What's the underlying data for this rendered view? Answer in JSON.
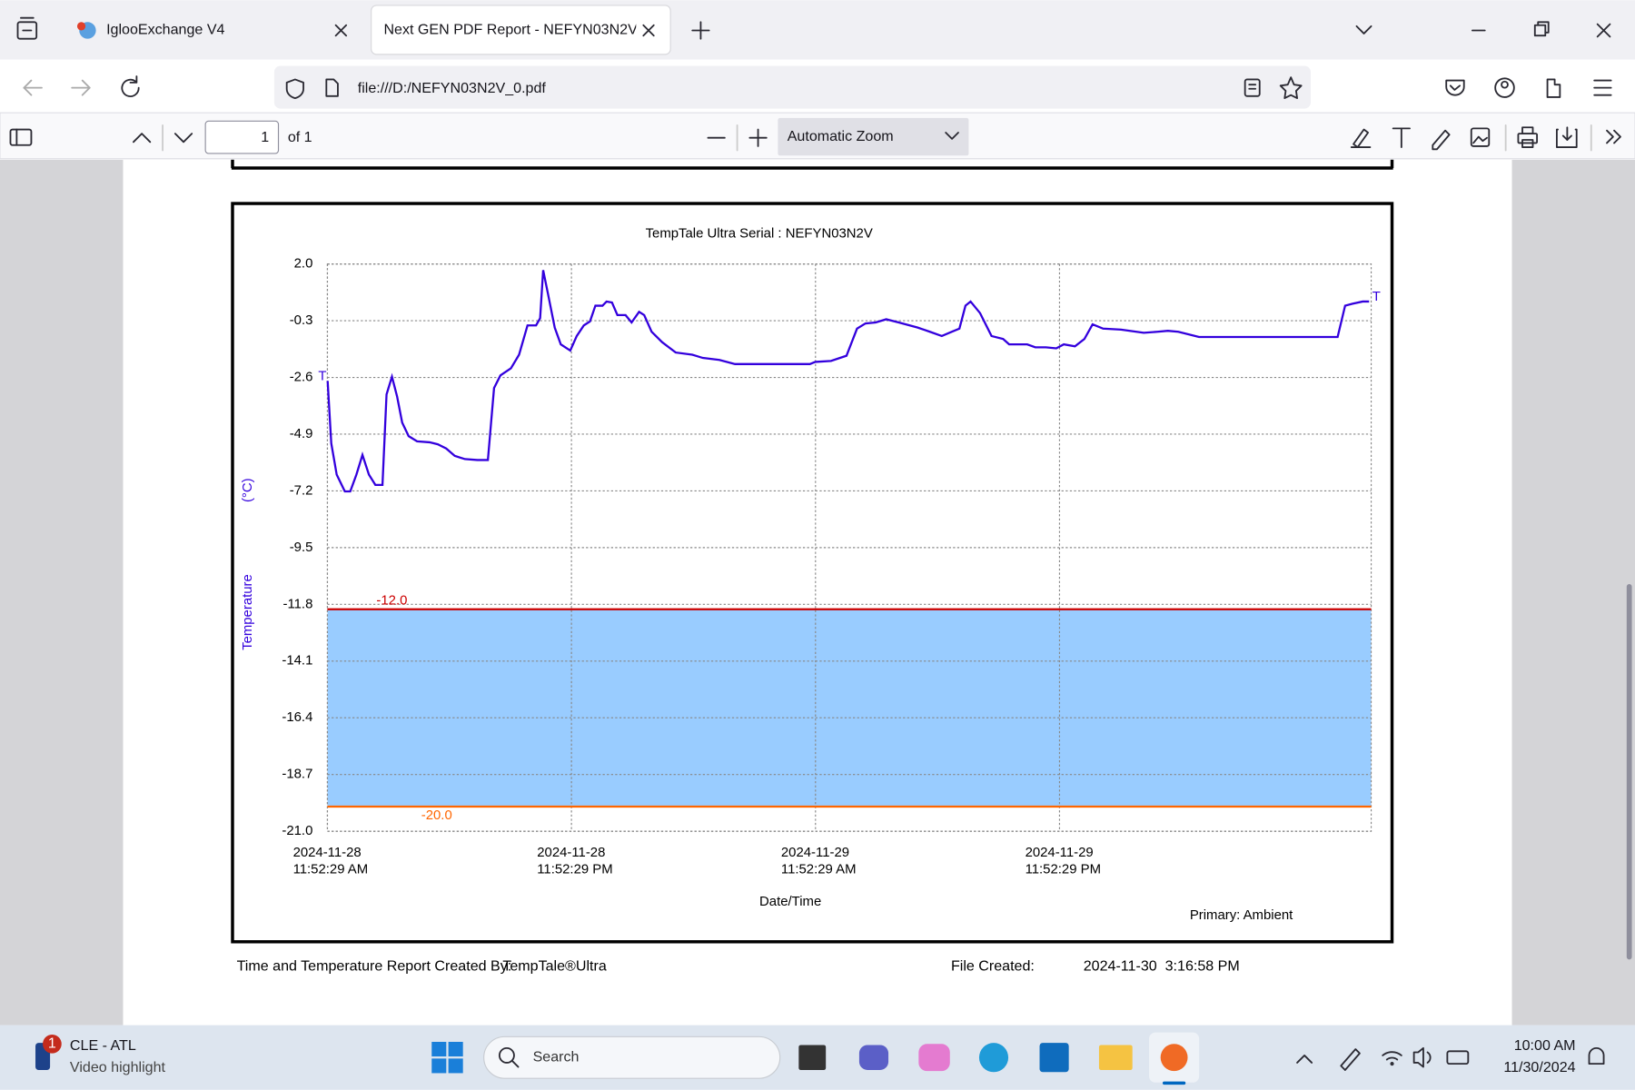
{
  "browser": {
    "tabs": [
      "IglooExchange V4",
      "Next GEN PDF Report - NEFYN03N2V_0.pdf"
    ],
    "address": "file:///D:/NEFYN03N2V_0.pdf",
    "pdf_toolbar": {
      "page": "1",
      "of": "of 1",
      "zoom": "Automatic Zoom"
    }
  },
  "chart_data": {
    "type": "line",
    "title": "TempTale Ultra  Serial : NEFYN03N2V",
    "ylabel": "Temperature",
    "yunit": "(°C)",
    "xlabel": "Date/Time",
    "x": [
      "2024-11-28T11:53",
      "2024-11-28T12:04",
      "2024-11-28T12:20",
      "2024-11-28T12:44",
      "2024-11-28T13:00",
      "2024-11-28T13:18",
      "2024-11-28T13:36",
      "2024-11-28T13:55",
      "2024-11-28T14:14",
      "2024-11-28T14:35",
      "2024-11-28T14:47",
      "2024-11-28T15:03",
      "2024-11-28T15:18",
      "2024-11-28T15:33",
      "2024-11-28T15:52",
      "2024-11-28T16:17",
      "2024-11-28T16:54",
      "2024-11-28T17:18",
      "2024-11-28T17:43",
      "2024-11-28T18:08",
      "2024-11-28T18:38",
      "2024-11-28T19:15",
      "2024-11-28T19:46",
      "2024-11-28T20:04",
      "2024-11-28T20:23",
      "2024-11-28T20:54",
      "2024-11-28T21:18",
      "2024-11-28T21:43",
      "2024-11-28T22:08",
      "2024-11-28T22:20",
      "2024-11-28T22:29",
      "2024-11-28T22:44",
      "2024-11-28T23:03",
      "2024-11-28T23:21",
      "2024-11-28T23:49",
      "2024-11-29T00:08",
      "2024-11-29T00:29",
      "2024-11-29T00:47",
      "2024-11-29T01:03",
      "2024-11-29T01:24",
      "2024-11-29T01:36",
      "2024-11-29T01:52",
      "2024-11-29T02:08",
      "2024-11-29T02:32",
      "2024-11-29T02:50",
      "2024-11-29T03:12",
      "2024-11-29T03:27",
      "2024-11-29T03:49",
      "2024-11-29T04:20",
      "2024-11-29T05:00",
      "2024-11-29T05:49",
      "2024-11-29T06:20",
      "2024-11-29T07:09",
      "2024-11-29T07:55",
      "2024-11-29T09:43",
      "2024-11-29T11:36",
      "2024-11-29T11:52",
      "2024-11-29T12:38",
      "2024-11-29T13:24",
      "2024-11-29T13:55",
      "2024-11-29T14:20",
      "2024-11-29T14:50",
      "2024-11-29T15:21",
      "2024-11-29T15:58",
      "2024-11-29T16:54",
      "2024-11-29T17:30",
      "2024-11-29T18:05",
      "2024-11-29T18:35",
      "2024-11-29T18:57",
      "2024-11-29T19:15",
      "2024-11-29T19:30",
      "2024-11-29T19:58",
      "2024-11-29T20:32",
      "2024-11-29T21:06",
      "2024-11-29T21:24",
      "2024-11-29T22:17",
      "2024-11-29T22:41",
      "2024-11-29T23:12",
      "2024-11-29T23:43",
      "2024-11-30T00:05",
      "2024-11-30T00:38",
      "2024-11-30T01:06",
      "2024-11-30T01:30",
      "2024-11-30T02:01",
      "2024-11-30T02:54",
      "2024-11-30T04:01",
      "2024-11-30T04:41",
      "2024-11-30T05:12",
      "2024-11-30T05:43",
      "2024-11-30T06:44",
      "2024-11-30T13:33",
      "2024-11-30T13:55",
      "2024-11-30T14:17",
      "2024-11-30T14:47",
      "2024-11-30T15:06"
    ],
    "series": [
      {
        "name": "Primary: Ambient",
        "color": "#3300dd",
        "values": [
          -2.74,
          -5.27,
          -6.54,
          -7.22,
          -7.22,
          -6.54,
          -5.74,
          -6.54,
          -6.96,
          -6.96,
          -3.29,
          -2.57,
          -3.37,
          -4.43,
          -4.98,
          -5.19,
          -5.23,
          -5.31,
          -5.48,
          -5.78,
          -5.91,
          -5.95,
          -5.95,
          -3.03,
          -2.52,
          -2.23,
          -1.68,
          -0.49,
          -0.49,
          -0.2,
          1.75,
          0.73,
          -0.58,
          -1.26,
          -1.51,
          -0.92,
          -0.49,
          -0.33,
          0.31,
          0.31,
          0.48,
          0.44,
          -0.07,
          -0.07,
          -0.37,
          0.06,
          -0.07,
          -0.75,
          -1.17,
          -1.59,
          -1.68,
          -1.81,
          -1.89,
          -2.06,
          -2.06,
          -2.06,
          -1.97,
          -1.93,
          -1.72,
          -0.62,
          -0.41,
          -0.37,
          -0.24,
          -0.37,
          -0.58,
          -0.75,
          -0.92,
          -0.75,
          -0.62,
          0.31,
          0.48,
          0.01,
          -0.92,
          -1.04,
          -1.26,
          -1.26,
          -1.38,
          -1.38,
          -1.42,
          -1.26,
          -1.34,
          -1.04,
          -0.45,
          -0.62,
          -0.66,
          -0.79,
          -0.75,
          -0.71,
          -0.75,
          -0.96,
          -0.96,
          0.31,
          0.39,
          0.48,
          0.48
        ]
      }
    ],
    "markers": [
      "T",
      "T"
    ],
    "limits": [
      {
        "value": -12,
        "label": "-12.0",
        "color": "#cc0000"
      },
      {
        "value": -20,
        "label": "-20.0",
        "color": "#ff6600"
      }
    ],
    "band_color": "#99ccff",
    "xlim": [
      "2024-11-28T11:52:29",
      "2024-11-30T15:12"
    ],
    "xticks": [
      {
        "value": "2024-11-28T11:52:29",
        "label": [
          "2024-11-28",
          "11:52:29 AM"
        ]
      },
      {
        "value": "2024-11-28T23:52:29",
        "label": [
          "2024-11-28",
          "11:52:29 PM"
        ]
      },
      {
        "value": "2024-11-29T11:52:29",
        "label": [
          "2024-11-29",
          "11:52:29 AM"
        ]
      },
      {
        "value": "2024-11-29T23:52:29",
        "label": [
          "2024-11-29",
          "11:52:29 PM"
        ]
      }
    ],
    "ylim": [
      -21,
      2
    ],
    "yticks": [
      {
        "value": 2,
        "label": "2.0"
      },
      -0.3,
      -2.6,
      -4.9,
      -7.2,
      -9.5,
      -11.8,
      -14.1,
      -16.4,
      -18.7,
      {
        "value": -21,
        "label": "-21.0"
      }
    ],
    "grid": true
  },
  "report_footer": {
    "created_by": "Time and Temperature Report Created By:",
    "product": "TempTale®Ultra",
    "file_created_label": "File Created:",
    "file_created": "2024-11-30  3:16:58 PM"
  },
  "taskbar": {
    "badge": "1",
    "game": "CLE - ATL",
    "game_sub": "Video highlight",
    "search": "Search",
    "time": "10:00 AM",
    "date": "11/30/2024"
  }
}
